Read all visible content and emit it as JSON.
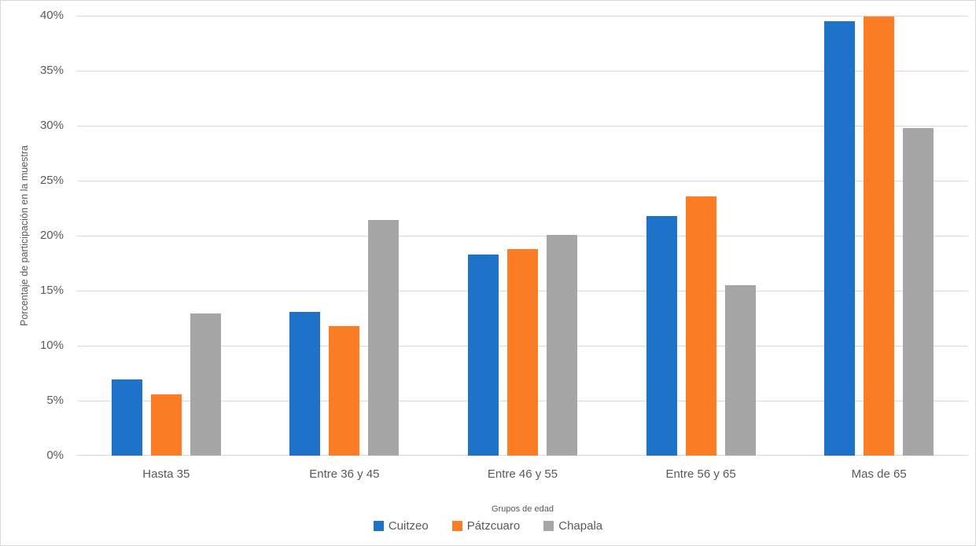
{
  "chart_data": {
    "type": "bar",
    "title": "",
    "categories": [
      "Hasta 35",
      "Entre 36 y 45",
      "Entre 46 y 55",
      "Entre 56 y 65",
      "Mas de 65"
    ],
    "series": [
      {
        "name": "Cuitzeo",
        "color": "#1E73C8",
        "values": [
          6.9,
          13.1,
          18.3,
          21.8,
          39.5
        ]
      },
      {
        "name": "Pátzcuaro",
        "color": "#FB7D26",
        "values": [
          5.6,
          11.8,
          18.8,
          23.6,
          39.9
        ]
      },
      {
        "name": "Chapala",
        "color": "#A6A6A6",
        "values": [
          12.9,
          21.4,
          20.1,
          15.5,
          29.8
        ]
      }
    ],
    "xlabel": "Grupos de edad",
    "ylabel": "Porcentaje de participación en la muestra",
    "ylim": [
      0,
      40
    ],
    "ytick_step": 5,
    "yticks": [
      "0%",
      "5%",
      "10%",
      "15%",
      "20%",
      "25%",
      "30%",
      "35%",
      "40%"
    ],
    "grid": true,
    "legend_position": "bottom"
  }
}
